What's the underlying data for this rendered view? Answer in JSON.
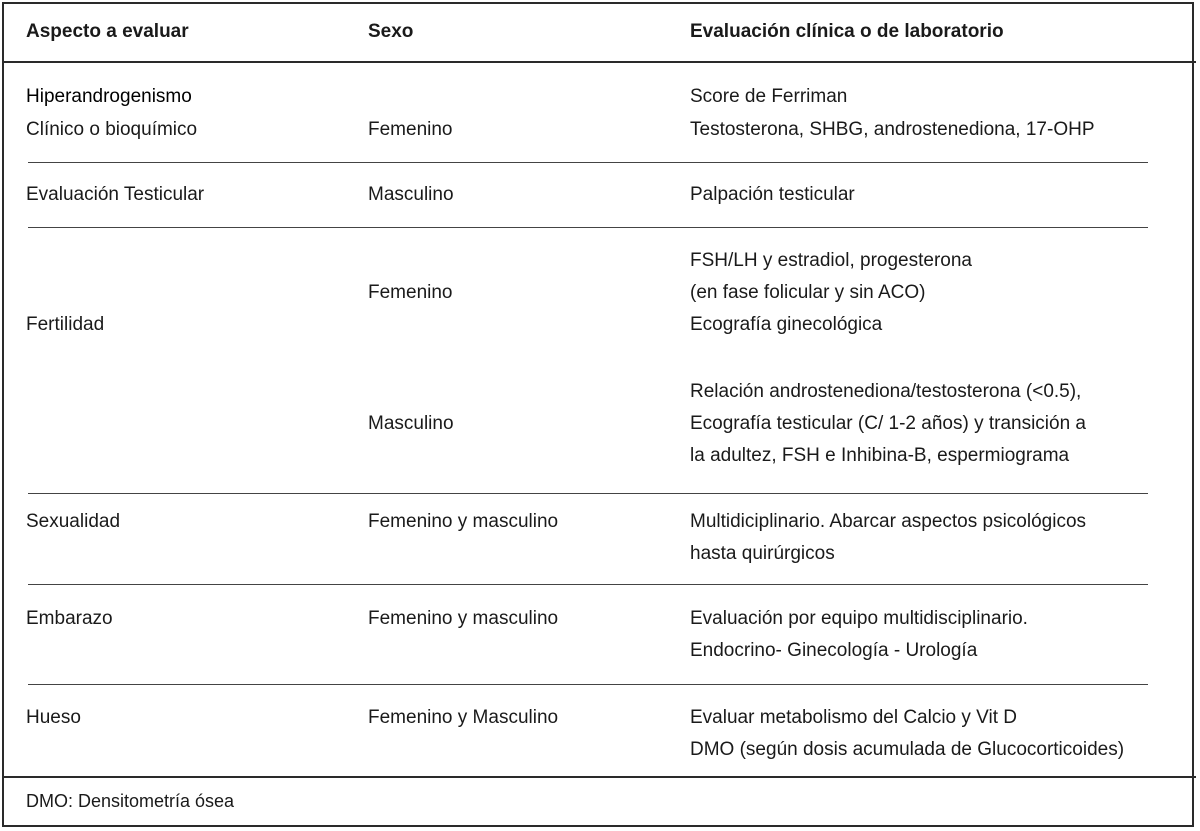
{
  "header": {
    "aspect": "Aspecto a evaluar",
    "sex": "Sexo",
    "evaluation": "Evaluación clínica o de laboratorio"
  },
  "rows": [
    {
      "aspect": [
        "Hiperandrogenismo",
        "Clínico o bioquímico"
      ],
      "sex": "Femenino",
      "evaluation": [
        "Score de Ferriman",
        "Testosterona, SHBG, androstenediona, 17-OHP"
      ]
    },
    {
      "aspect": [
        "Evaluación Testicular"
      ],
      "sex": "Masculino",
      "evaluation": [
        "Palpación testicular"
      ]
    },
    {
      "aspect": [
        "Fertilidad"
      ],
      "sub": [
        {
          "sex": "Femenino",
          "evaluation": [
            "FSH/LH y estradiol, progesterona",
            "(en fase folicular y sin ACO)",
            "Ecografía ginecológica"
          ]
        },
        {
          "sex": "Masculino",
          "evaluation": [
            "Relación androstenediona/testosterona (<0.5),",
            "Ecografía testicular (C/ 1-2 años) y transición a",
            "la adultez, FSH e Inhibina-B, espermiograma"
          ]
        }
      ]
    },
    {
      "aspect": [
        "Sexualidad"
      ],
      "sex": "Femenino y masculino",
      "evaluation": [
        "Multidiciplinario. Abarcar aspectos psicológicos",
        "hasta quirúrgicos"
      ]
    },
    {
      "aspect": [
        "Embarazo"
      ],
      "sex": "Femenino y masculino",
      "evaluation": [
        "Evaluación por equipo multidisciplinario.",
        "Endocrino- Ginecología - Urología"
      ]
    },
    {
      "aspect": [
        "Hueso"
      ],
      "sex": "Femenino y Masculino",
      "evaluation": [
        "Evaluar metabolismo del Calcio y Vit D",
        "DMO (según dosis acumulada de Glucocorticoides)"
      ]
    }
  ],
  "footnote": "DMO: Densitometría ósea"
}
